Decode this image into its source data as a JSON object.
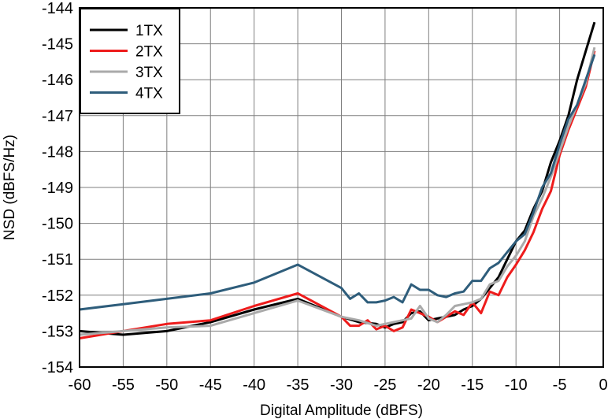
{
  "chart_data": {
    "type": "line",
    "title": "",
    "xlabel": "Digital Amplitude (dBFS)",
    "ylabel": "NSD (dBFS/Hz)",
    "xlim": [
      -60,
      0
    ],
    "ylim": [
      -154,
      -144
    ],
    "xticks": [
      "-60",
      "-55",
      "-50",
      "-45",
      "-40",
      "-35",
      "-30",
      "-25",
      "-20",
      "-15",
      "-10",
      "-5",
      "0"
    ],
    "yticks": [
      "-144",
      "-145",
      "-146",
      "-147",
      "-148",
      "-149",
      "-150",
      "-151",
      "-152",
      "-153",
      "-154"
    ],
    "grid": true,
    "legend": "top-left",
    "series": [
      {
        "name": "1TX",
        "color": "#000000",
        "points": [
          [
            -60,
            -153.0
          ],
          [
            -55,
            -153.1
          ],
          [
            -50,
            -153.0
          ],
          [
            -45,
            -152.75
          ],
          [
            -40,
            -152.4
          ],
          [
            -35,
            -152.1
          ],
          [
            -30,
            -152.6
          ],
          [
            -28,
            -152.75
          ],
          [
            -26,
            -152.8
          ],
          [
            -25,
            -152.9
          ],
          [
            -24,
            -152.8
          ],
          [
            -23,
            -152.75
          ],
          [
            -22,
            -152.5
          ],
          [
            -21,
            -152.45
          ],
          [
            -20,
            -152.7
          ],
          [
            -19,
            -152.65
          ],
          [
            -18,
            -152.6
          ],
          [
            -17,
            -152.55
          ],
          [
            -16,
            -152.4
          ],
          [
            -15,
            -152.3
          ],
          [
            -14,
            -152.1
          ],
          [
            -13,
            -151.8
          ],
          [
            -12,
            -151.5
          ],
          [
            -11,
            -151.0
          ],
          [
            -10,
            -150.5
          ],
          [
            -9,
            -150.2
          ],
          [
            -8,
            -149.6
          ],
          [
            -7,
            -149.1
          ],
          [
            -6,
            -148.3
          ],
          [
            -5,
            -147.7
          ],
          [
            -4,
            -147.0
          ],
          [
            -3,
            -146.0
          ],
          [
            -2,
            -145.2
          ],
          [
            -1,
            -144.4
          ]
        ]
      },
      {
        "name": "2TX",
        "color": "#ee1c1c",
        "points": [
          [
            -60,
            -153.2
          ],
          [
            -55,
            -153.0
          ],
          [
            -50,
            -152.8
          ],
          [
            -45,
            -152.7
          ],
          [
            -40,
            -152.3
          ],
          [
            -35,
            -151.95
          ],
          [
            -30,
            -152.6
          ],
          [
            -29,
            -152.85
          ],
          [
            -28,
            -152.85
          ],
          [
            -27,
            -152.7
          ],
          [
            -26,
            -152.95
          ],
          [
            -25,
            -152.85
          ],
          [
            -24,
            -153.0
          ],
          [
            -23,
            -152.9
          ],
          [
            -22,
            -152.4
          ],
          [
            -21,
            -152.5
          ],
          [
            -20,
            -152.6
          ],
          [
            -19,
            -152.75
          ],
          [
            -18,
            -152.6
          ],
          [
            -17,
            -152.45
          ],
          [
            -16,
            -152.55
          ],
          [
            -15,
            -152.2
          ],
          [
            -14,
            -152.5
          ],
          [
            -13,
            -151.9
          ],
          [
            -12,
            -152.0
          ],
          [
            -11,
            -151.5
          ],
          [
            -10,
            -151.15
          ],
          [
            -9,
            -150.75
          ],
          [
            -8,
            -150.25
          ],
          [
            -7,
            -149.6
          ],
          [
            -6,
            -149.1
          ],
          [
            -5,
            -148.1
          ],
          [
            -4,
            -147.4
          ],
          [
            -3,
            -146.8
          ],
          [
            -2,
            -146.2
          ],
          [
            -1,
            -145.2
          ]
        ]
      },
      {
        "name": "3TX",
        "color": "#aaaaaa",
        "points": [
          [
            -60,
            -153.1
          ],
          [
            -55,
            -153.0
          ],
          [
            -50,
            -152.9
          ],
          [
            -45,
            -152.85
          ],
          [
            -40,
            -152.5
          ],
          [
            -35,
            -152.15
          ],
          [
            -30,
            -152.6
          ],
          [
            -28,
            -152.7
          ],
          [
            -26,
            -152.85
          ],
          [
            -25,
            -152.8
          ],
          [
            -24,
            -152.75
          ],
          [
            -23,
            -152.7
          ],
          [
            -22,
            -152.65
          ],
          [
            -21,
            -152.3
          ],
          [
            -20,
            -152.65
          ],
          [
            -19,
            -152.75
          ],
          [
            -18,
            -152.55
          ],
          [
            -17,
            -152.3
          ],
          [
            -16,
            -152.25
          ],
          [
            -15,
            -152.2
          ],
          [
            -14,
            -152.1
          ],
          [
            -13,
            -151.7
          ],
          [
            -12,
            -151.6
          ],
          [
            -11,
            -151.2
          ],
          [
            -10,
            -150.9
          ],
          [
            -9,
            -150.5
          ],
          [
            -8,
            -149.8
          ],
          [
            -7,
            -149.3
          ],
          [
            -6,
            -148.7
          ],
          [
            -5,
            -148.0
          ],
          [
            -4,
            -147.3
          ],
          [
            -3,
            -146.7
          ],
          [
            -2,
            -146.1
          ],
          [
            -1,
            -145.1
          ]
        ]
      },
      {
        "name": "4TX",
        "color": "#2e5d7b",
        "points": [
          [
            -60,
            -152.4
          ],
          [
            -55,
            -152.25
          ],
          [
            -50,
            -152.1
          ],
          [
            -45,
            -151.95
          ],
          [
            -40,
            -151.65
          ],
          [
            -35,
            -151.15
          ],
          [
            -30,
            -151.8
          ],
          [
            -29,
            -152.1
          ],
          [
            -28,
            -151.95
          ],
          [
            -27,
            -152.2
          ],
          [
            -26,
            -152.2
          ],
          [
            -25,
            -152.15
          ],
          [
            -24,
            -152.05
          ],
          [
            -23,
            -152.2
          ],
          [
            -22,
            -151.7
          ],
          [
            -21,
            -151.85
          ],
          [
            -20,
            -151.85
          ],
          [
            -19,
            -152.0
          ],
          [
            -18,
            -152.05
          ],
          [
            -17,
            -151.95
          ],
          [
            -16,
            -151.9
          ],
          [
            -15,
            -151.6
          ],
          [
            -14,
            -151.6
          ],
          [
            -13,
            -151.25
          ],
          [
            -12,
            -151.1
          ],
          [
            -11,
            -150.8
          ],
          [
            -10,
            -150.5
          ],
          [
            -9,
            -150.3
          ],
          [
            -8,
            -149.7
          ],
          [
            -7,
            -149.0
          ],
          [
            -6,
            -148.6
          ],
          [
            -5,
            -147.8
          ],
          [
            -4,
            -147.1
          ],
          [
            -3,
            -146.7
          ],
          [
            -2,
            -146.0
          ],
          [
            -1,
            -145.3
          ]
        ]
      }
    ]
  }
}
